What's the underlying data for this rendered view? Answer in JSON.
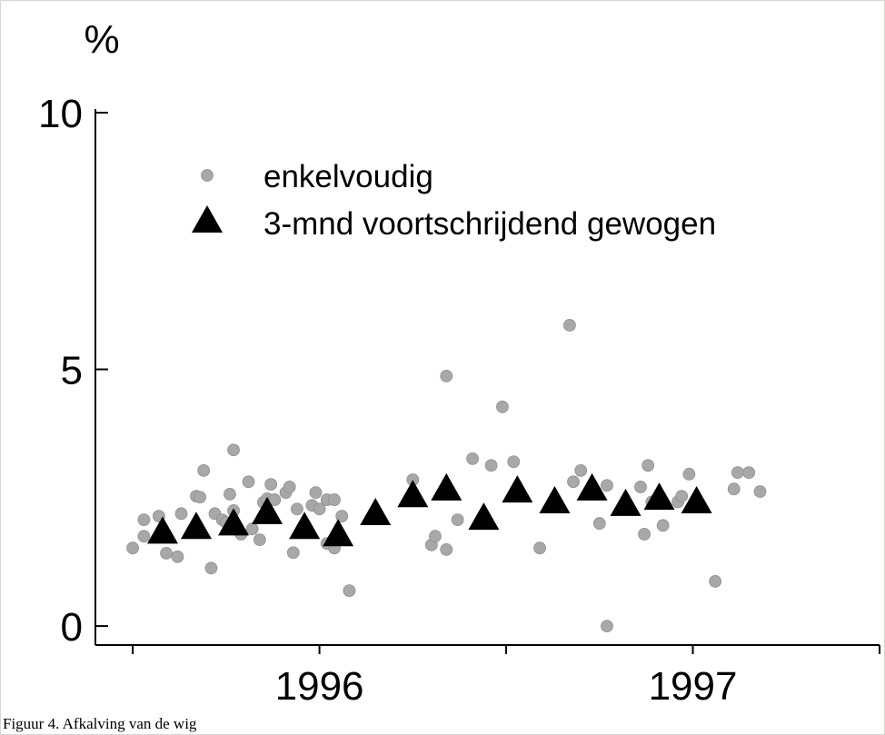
{
  "chart_data": {
    "type": "scatter",
    "caption": "Figuur 4. Afkalving van de wig",
    "ylabel": "%",
    "xlim": [
      1995.4,
      1997.5
    ],
    "ylim": [
      -0.37,
      10
    ],
    "yticks": [
      0,
      5,
      10
    ],
    "xticks": [
      {
        "value": 1995.5,
        "label": null
      },
      {
        "value": 1996,
        "label": "1996"
      },
      {
        "value": 1996.5,
        "label": null
      },
      {
        "value": 1997,
        "label": "1997"
      },
      {
        "value": 1997.5,
        "label": null
      }
    ],
    "grid": false,
    "legend": "upper left",
    "series": [
      {
        "name": "enkelvoudig",
        "color": "#a8a8a8",
        "marker": "circle",
        "x": [
          1995.5,
          1995.53,
          1995.53,
          1995.57,
          1995.59,
          1995.62,
          1995.63,
          1995.67,
          1995.68,
          1995.69,
          1995.71,
          1995.72,
          1995.74,
          1995.75,
          1995.76,
          1995.77,
          1995.77,
          1995.79,
          1995.81,
          1995.82,
          1995.84,
          1995.85,
          1995.86,
          1995.87,
          1995.88,
          1995.91,
          1995.93,
          1995.92,
          1995.94,
          1995.98,
          1995.99,
          1996.0,
          1996.02,
          1996.02,
          1996.04,
          1996.04,
          1996.06,
          1996.08,
          1996.25,
          1996.3,
          1996.31,
          1996.33,
          1996.34,
          1996.34,
          1996.37,
          1996.41,
          1996.46,
          1996.49,
          1996.52,
          1996.59,
          1996.67,
          1996.7,
          1996.68,
          1996.75,
          1996.77,
          1996.77,
          1996.86,
          1996.87,
          1996.88,
          1996.89,
          1996.92,
          1996.96,
          1996.97,
          1996.99,
          1997.06,
          1997.11,
          1997.12,
          1997.15,
          1997.18
        ],
        "values": [
          1.52,
          2.07,
          1.75,
          2.14,
          1.42,
          1.35,
          2.19,
          2.53,
          2.51,
          3.03,
          1.13,
          2.19,
          2.07,
          2.02,
          2.57,
          3.43,
          2.25,
          1.79,
          2.81,
          1.89,
          1.68,
          2.41,
          2.48,
          2.76,
          2.46,
          2.6,
          1.43,
          2.71,
          2.28,
          2.35,
          2.6,
          2.28,
          1.61,
          2.46,
          2.46,
          1.52,
          2.14,
          0.69,
          2.85,
          1.58,
          1.75,
          2.6,
          1.49,
          4.87,
          2.07,
          3.26,
          3.13,
          4.27,
          3.2,
          1.52,
          5.86,
          3.03,
          2.81,
          2.0,
          2.74,
          0,
          2.71,
          1.79,
          3.13,
          2.42,
          1.96,
          2.42,
          2.53,
          2.96,
          0.87,
          2.67,
          2.99,
          2.99,
          2.62
        ]
      },
      {
        "name": "3-mnd voortschrijdend gewogen",
        "color": "#000000",
        "marker": "triangle",
        "x": [
          1995.58,
          1995.67,
          1995.77,
          1995.86,
          1995.96,
          1996.05,
          1996.15,
          1996.25,
          1996.34,
          1996.44,
          1996.53,
          1996.63,
          1996.73,
          1996.82,
          1996.91,
          1997.01
        ],
        "values": [
          1.8,
          1.89,
          1.96,
          2.18,
          1.89,
          1.75,
          2.16,
          2.51,
          2.64,
          2.07,
          2.6,
          2.39,
          2.64,
          2.34,
          2.46,
          2.39
        ]
      }
    ]
  }
}
